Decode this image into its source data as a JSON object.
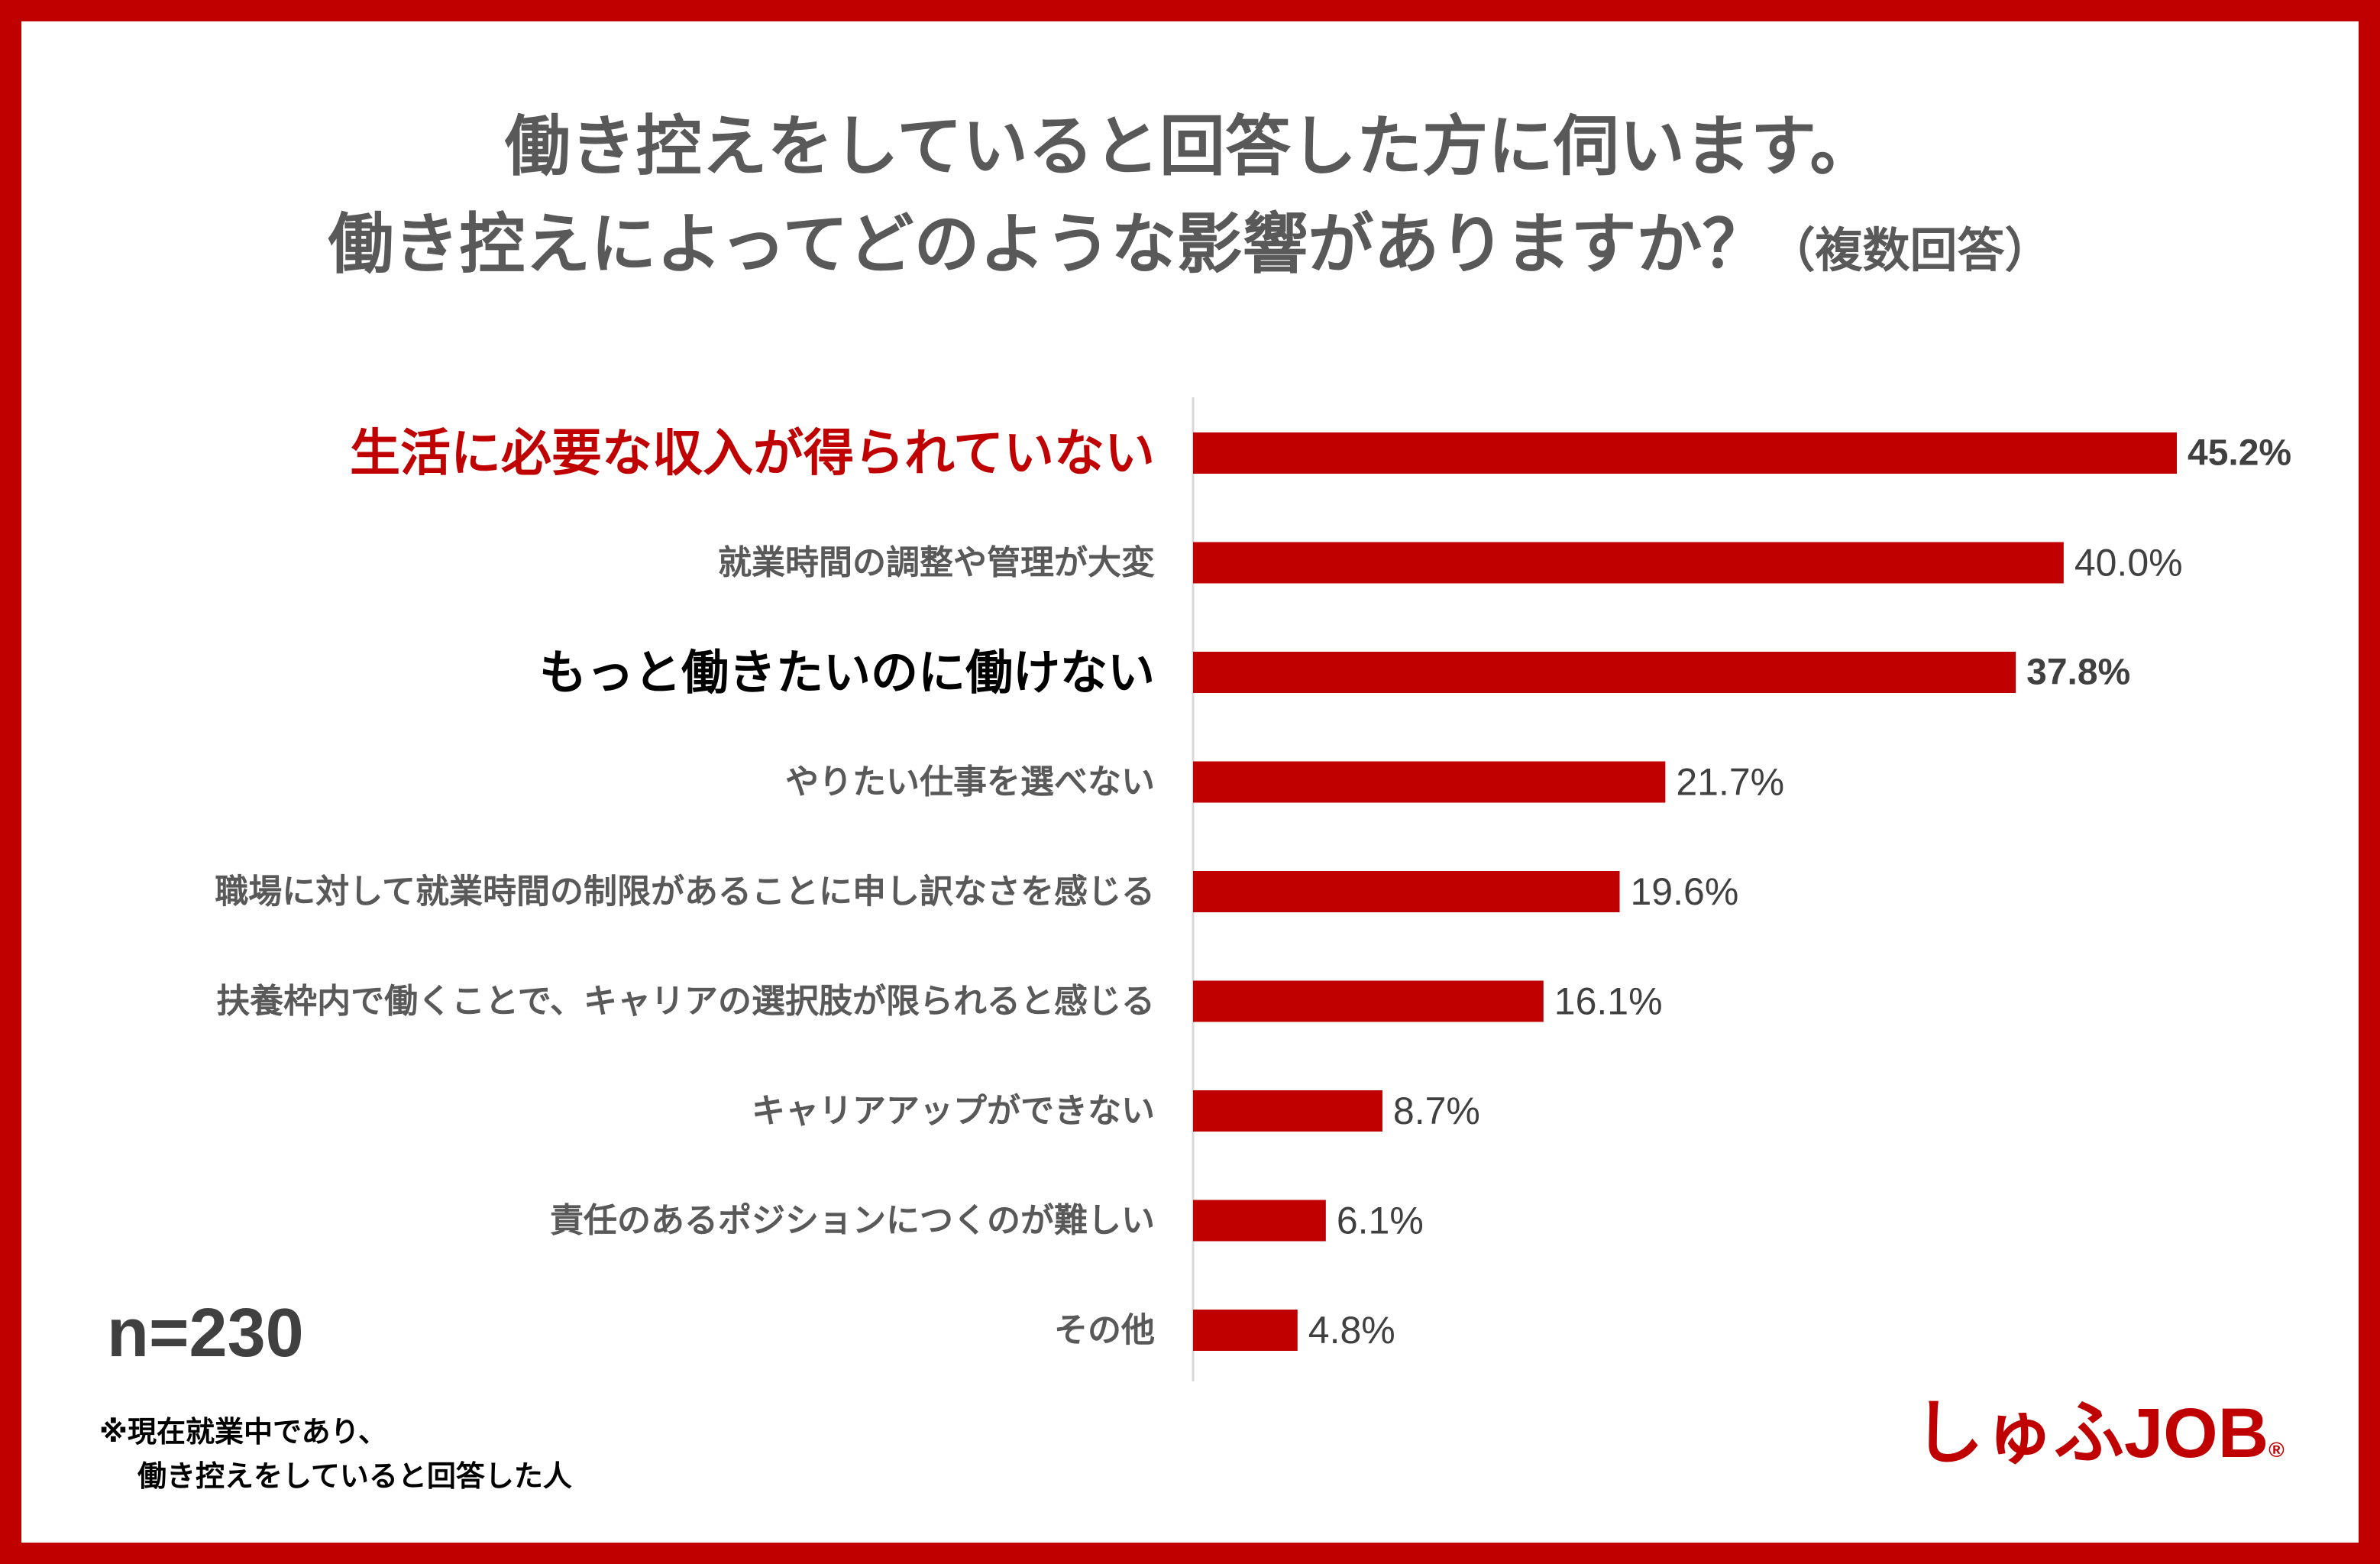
{
  "title": {
    "line1": "働き控えをしていると回答した方に伺います。",
    "line2": "働き控えによってどのような影響がありますか？",
    "line2_suffix": "（複数回答）"
  },
  "chart_data": {
    "type": "bar",
    "orientation": "horizontal",
    "categories": [
      "生活に必要な収入が得られていない",
      "就業時間の調整や管理が大変",
      "もっと働きたいのに働けない",
      "やりたい仕事を選べない",
      "職場に対して就業時間の制限があることに申し訳なさを感じる",
      "扶養枠内で働くことで、キャリアの選択肢が限られると感じる",
      "キャリアアップができない",
      "責任のあるポジションにつくのが難しい",
      "その他"
    ],
    "values": [
      45.2,
      40.0,
      37.8,
      21.7,
      19.6,
      16.1,
      8.7,
      6.1,
      4.8
    ],
    "value_labels": [
      "45.2%",
      "40.0%",
      "37.8%",
      "21.7%",
      "19.6%",
      "16.1%",
      "8.7%",
      "6.1%",
      "4.8%"
    ],
    "highlight": [
      "red",
      "none",
      "black",
      "none",
      "none",
      "none",
      "none",
      "none",
      "none"
    ],
    "bar_color": "#c00000",
    "unit": "%",
    "xlim": [
      0,
      45.2
    ]
  },
  "sample_size": "n=230",
  "note": {
    "line1": "※現在就業中であり、",
    "line2": "働き控えをしていると回答した人"
  },
  "logo": {
    "text": "しゅふJOB",
    "mark": "®"
  },
  "colors": {
    "frame": "#c00000",
    "accent": "#c00000",
    "title_text": "#595959"
  }
}
